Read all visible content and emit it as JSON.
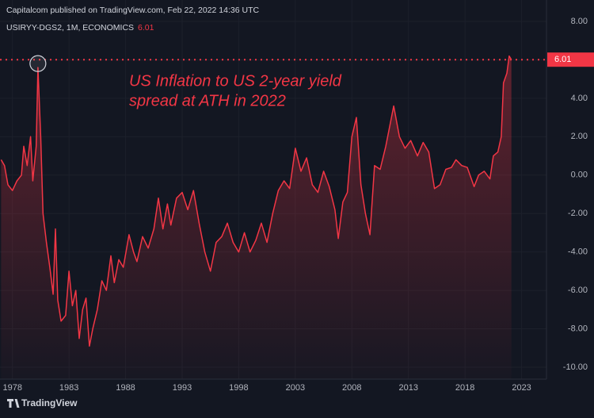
{
  "chart_data": {
    "type": "line",
    "header": "Capitalcom published on TradingView.com, Feb 22, 2022 14:36 UTC",
    "symbol": "USIRYY-DGS2, 1M, ECONOMICS",
    "annotation": [
      "US Inflation to US 2-year yield",
      "spread at ATH in 2022"
    ],
    "brand": "TradingView",
    "xlim": [
      1976.9,
      2025.2
    ],
    "xticks": [
      1978,
      1983,
      1988,
      1993,
      1998,
      2003,
      2008,
      2013,
      2018,
      2023
    ],
    "ylim": [
      -10,
      8
    ],
    "yticks": [
      {
        "value": -10,
        "label": "-10.00"
      },
      {
        "value": -8,
        "label": "-8.00"
      },
      {
        "value": -6,
        "label": "-6.00"
      },
      {
        "value": -4,
        "label": "-4.00"
      },
      {
        "value": -2,
        "label": "-2.00"
      },
      {
        "value": 0,
        "label": "0.00"
      },
      {
        "value": 2,
        "label": "2.00"
      },
      {
        "value": 4,
        "label": "4.00"
      },
      {
        "value": 6,
        "label": "6.00"
      },
      {
        "value": 8,
        "label": "8.00"
      }
    ],
    "grid": true,
    "series": [
      {
        "name": "USIRYY-DGS2",
        "color": "#f23645",
        "x": [
          1977.0,
          1977.3,
          1977.6,
          1978.0,
          1978.4,
          1978.8,
          1979.0,
          1979.3,
          1979.6,
          1979.8,
          1980.1,
          1980.25,
          1980.5,
          1980.7,
          1981.0,
          1981.3,
          1981.6,
          1981.8,
          1982.0,
          1982.3,
          1982.7,
          1983.0,
          1983.3,
          1983.6,
          1983.9,
          1984.2,
          1984.5,
          1984.8,
          1985.1,
          1985.5,
          1985.9,
          1986.3,
          1986.7,
          1987.0,
          1987.4,
          1987.8,
          1988.3,
          1988.7,
          1989.0,
          1989.5,
          1990.0,
          1990.5,
          1990.9,
          1991.3,
          1991.7,
          1992.0,
          1992.5,
          1993.0,
          1993.5,
          1994.0,
          1994.5,
          1995.0,
          1995.5,
          1996.0,
          1996.5,
          1997.0,
          1997.5,
          1998.0,
          1998.5,
          1999.0,
          1999.5,
          2000.0,
          2000.5,
          2001.0,
          2001.5,
          2002.0,
          2002.5,
          2003.0,
          2003.5,
          2004.0,
          2004.5,
          2005.0,
          2005.5,
          2006.0,
          2006.5,
          2006.8,
          2007.2,
          2007.6,
          2008.0,
          2008.4,
          2008.8,
          2009.2,
          2009.6,
          2010.0,
          2010.5,
          2011.0,
          2011.7,
          2012.2,
          2012.7,
          2013.2,
          2013.8,
          2014.3,
          2014.8,
          2015.3,
          2015.8,
          2016.3,
          2016.8,
          2017.2,
          2017.7,
          2018.2,
          2018.8,
          2019.2,
          2019.7,
          2020.2,
          2020.5,
          2020.9,
          2021.2,
          2021.4,
          2021.7,
          2021.9,
          2022.1
        ],
        "values": [
          0.8,
          0.5,
          -0.5,
          -0.8,
          -0.3,
          0.0,
          1.5,
          0.5,
          2.0,
          -0.3,
          1.5,
          5.6,
          2.0,
          -2.0,
          -3.5,
          -4.8,
          -6.2,
          -2.8,
          -6.5,
          -7.6,
          -7.3,
          -5.0,
          -6.8,
          -6.0,
          -8.5,
          -7.0,
          -6.4,
          -8.9,
          -8.0,
          -7.0,
          -5.5,
          -6.0,
          -4.2,
          -5.6,
          -4.4,
          -4.8,
          -3.1,
          -4.0,
          -4.5,
          -3.2,
          -3.8,
          -2.8,
          -1.2,
          -2.8,
          -1.5,
          -2.6,
          -1.2,
          -0.9,
          -1.8,
          -0.8,
          -2.5,
          -4.0,
          -5.0,
          -3.5,
          -3.2,
          -2.5,
          -3.5,
          -4.0,
          -3.0,
          -4.0,
          -3.4,
          -2.5,
          -3.5,
          -2.0,
          -0.8,
          -0.3,
          -0.7,
          1.4,
          0.2,
          0.9,
          -0.5,
          -0.9,
          0.2,
          -0.6,
          -1.8,
          -3.3,
          -1.4,
          -0.9,
          2.0,
          3.0,
          -0.5,
          -2.0,
          -3.1,
          0.5,
          0.3,
          1.5,
          3.6,
          2.0,
          1.4,
          1.8,
          1.0,
          1.7,
          1.2,
          -0.7,
          -0.5,
          0.3,
          0.4,
          0.8,
          0.5,
          0.4,
          -0.6,
          0.0,
          0.2,
          -0.2,
          1.0,
          1.2,
          2.0,
          4.8,
          5.3,
          6.2,
          6.01
        ]
      }
    ]
  }
}
